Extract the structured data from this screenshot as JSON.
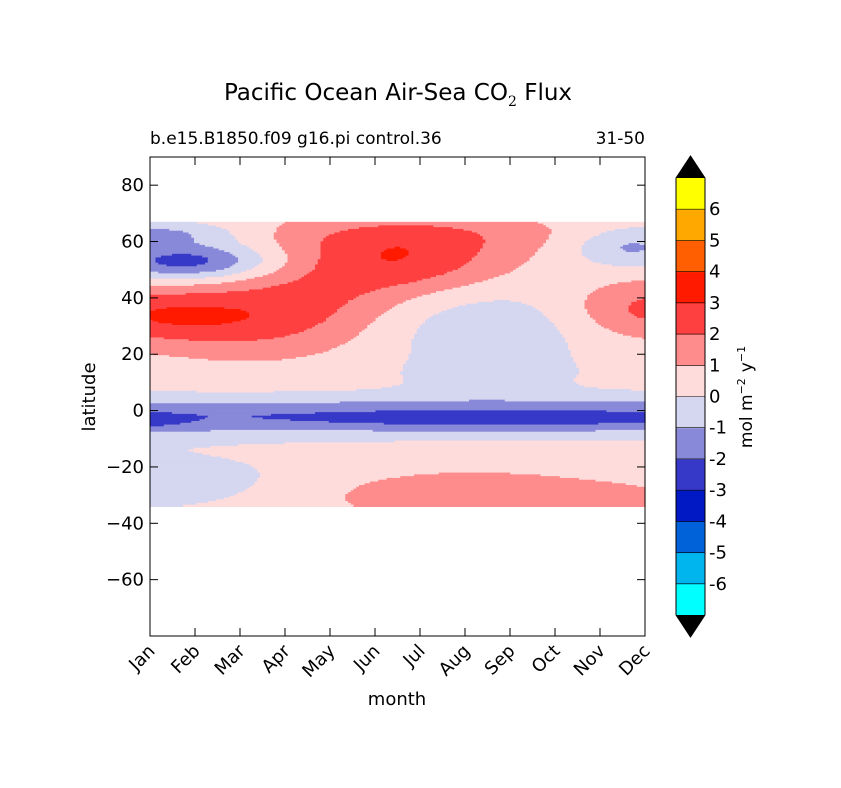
{
  "chart_data": {
    "type": "heatmap",
    "title_main": "Pacific Ocean Air-Sea CO",
    "title_sub": "2",
    "title_tail": " Flux",
    "subtitle_left": "b.e15.B1850.f09 g16.pi control.36",
    "subtitle_right": "31-50",
    "xlabel": "month",
    "ylabel": "latitude",
    "colorbar_label": "mol m",
    "colorbar_exp1": "−2",
    "colorbar_unit": "y",
    "colorbar_exp2": "−1",
    "x_ticks": [
      "Jan",
      "Feb",
      "Mar",
      "Apr",
      "May",
      "Jun",
      "Jul",
      "Aug",
      "Sep",
      "Oct",
      "Nov",
      "Dec"
    ],
    "y_ticks": [
      80,
      60,
      40,
      20,
      0,
      -20,
      -40,
      -60
    ],
    "y_tick_labels": [
      "80",
      "60",
      "40",
      "20",
      "0",
      "−20",
      "−40",
      "−60"
    ],
    "ylim": [
      -80,
      90
    ],
    "xlim": [
      1,
      12
    ],
    "data_lat_range": [
      -34,
      67
    ],
    "levels": [
      -7,
      -6,
      -5,
      -4,
      -3,
      -2,
      -1,
      0,
      1,
      2,
      3,
      4,
      5,
      6,
      7
    ],
    "colorbar_labels": [
      "6",
      "5",
      "4",
      "3",
      "2",
      "1",
      "0",
      "-1",
      "-2",
      "-3",
      "-4",
      "-5",
      "-6"
    ],
    "colors": [
      "#00ffff",
      "#00b4ee",
      "#0062d8",
      "#0019c4",
      "#3639c8",
      "#8989da",
      "#d5d6f0",
      "#ffdcdc",
      "#ff8c8c",
      "#ff4040",
      "#ff1a00",
      "#ff5f00",
      "#ffa800",
      "#ffff00"
    ],
    "extend_color": "#000000",
    "grid": false,
    "colorbar_position": "right"
  }
}
